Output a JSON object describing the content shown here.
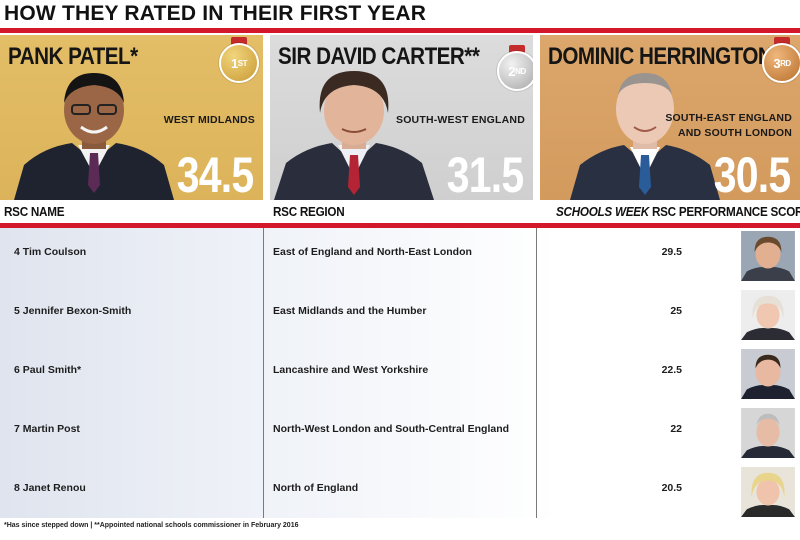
{
  "headline": "HOW THEY RATED IN THEIR FIRST YEAR",
  "colors": {
    "accent_red": "#d3182c",
    "gold_panel": "#e0b862",
    "silver_panel": "#d5d5d5",
    "bronze_panel": "#d8a064"
  },
  "top3": [
    {
      "name": "PANK PATEL*",
      "rank_num": "1",
      "rank_suffix": "ST",
      "region_line1": "WEST MIDLANDS",
      "region_line2": "",
      "score": "34.5",
      "medal": "gold"
    },
    {
      "name": "SIR DAVID CARTER**",
      "rank_num": "2",
      "rank_suffix": "ND",
      "region_line1": "SOUTH-WEST ENGLAND",
      "region_line2": "",
      "score": "31.5",
      "medal": "silver"
    },
    {
      "name": "DOMINIC HERRINGTON",
      "rank_num": "3",
      "rank_suffix": "RD",
      "region_line1": "SOUTH-EAST ENGLAND",
      "region_line2": "AND SOUTH LONDON",
      "score": "30.5",
      "medal": "bronze"
    }
  ],
  "columns": {
    "name": "RSC NAME",
    "region": "RSC REGION",
    "score_italic": "SCHOOLS WEEK",
    "score_rest": " RSC PERFORMANCE SCORE"
  },
  "rows": [
    {
      "name": "4 Tim Coulson",
      "region": "East of England and North-East London",
      "score": "29.5"
    },
    {
      "name": "5 Jennifer Bexon-Smith",
      "region": "East Midlands and the Humber",
      "score": "25"
    },
    {
      "name": "6 Paul Smith*",
      "region": "Lancashire and West Yorkshire",
      "score": "22.5"
    },
    {
      "name": "7 Martin Post",
      "region": "North-West London and South-Central England",
      "score": "22"
    },
    {
      "name": "8 Janet Renou",
      "region": "North of England",
      "score": "20.5"
    }
  ],
  "footnote": "*Has since stepped down | **Appointed national schools commissioner in February 2016"
}
